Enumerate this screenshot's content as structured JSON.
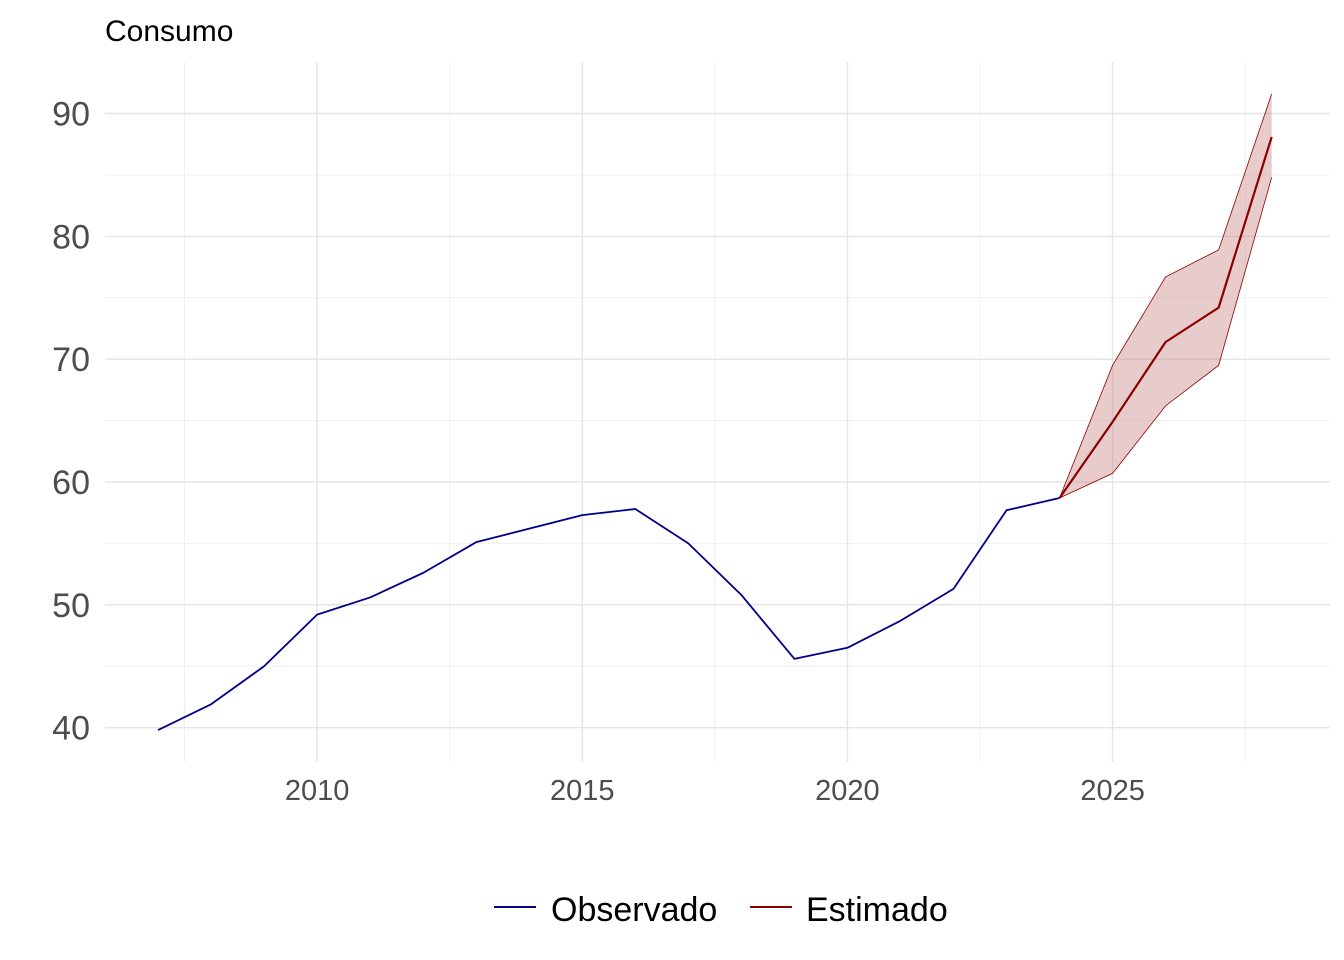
{
  "chart_data": {
    "type": "line",
    "title": "Consumo",
    "xlabel": "",
    "ylabel": "",
    "xlim": [
      2006.0,
      2029.1
    ],
    "ylim": [
      37.2,
      94.2
    ],
    "x_ticks": [
      2010,
      2015,
      2020,
      2025
    ],
    "x_minor": [
      2007.5,
      2012.5,
      2017.5,
      2022.5,
      2027.5
    ],
    "y_ticks": [
      40,
      50,
      60,
      70,
      80,
      90
    ],
    "y_minor": [
      45,
      55,
      65,
      75,
      85
    ],
    "grid": true,
    "legend_position": "bottom",
    "series": [
      {
        "name": "Observado",
        "color": "#00008B",
        "x": [
          2007,
          2008,
          2009,
          2010,
          2011,
          2012,
          2013,
          2014,
          2015,
          2016,
          2017,
          2018,
          2019,
          2020,
          2021,
          2022,
          2023,
          2024
        ],
        "y": [
          39.8,
          41.9,
          45.0,
          49.2,
          50.6,
          52.6,
          55.1,
          56.2,
          57.3,
          57.8,
          55.0,
          50.8,
          45.6,
          46.5,
          48.7,
          51.3,
          57.7,
          58.7
        ]
      },
      {
        "name": "Estimado",
        "color": "#8B0000",
        "band_color": "#CD8C8C",
        "x": [
          2024,
          2025,
          2026,
          2027,
          2028
        ],
        "y": [
          58.7,
          64.9,
          71.4,
          74.2,
          88.1
        ],
        "lower": [
          58.7,
          60.7,
          66.2,
          69.5,
          84.8
        ],
        "upper": [
          58.7,
          69.5,
          76.7,
          78.9,
          91.6
        ]
      }
    ]
  }
}
